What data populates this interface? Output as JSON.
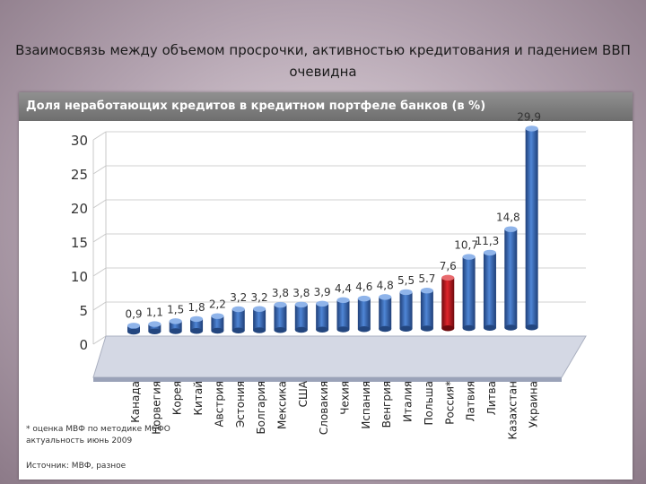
{
  "slide": {
    "title": "Взаимосвязь между объемом просрочки, активностью кредитования и падением ВВП очевидна"
  },
  "panel": {
    "header": "Доля неработающих кредитов  в кредитном портфеле  банков (в %)",
    "footnote_line1": "* оценка МВФ по методике МСФО",
    "footnote_line2": "актуальность июнь 2009",
    "source": "Источник: МВФ, разное"
  },
  "colors": {
    "bar": "#3d6fc0",
    "bar_highlight": "#c0141a"
  },
  "chart_data": {
    "type": "bar",
    "title": "Доля неработающих кредитов  в кредитном портфеле  банков (в %)",
    "categories": [
      "Канада",
      "Норвегия",
      "Корея",
      "Китай",
      "Австрия",
      "Эстония",
      "Болгария",
      "Мексика",
      "США",
      "Словакия",
      "Чехия",
      "Испания",
      "Венгрия",
      "Италия",
      "Польша",
      "Россия*",
      "Латвия",
      "Литва",
      "Казахстан",
      "Украина"
    ],
    "values": [
      0.9,
      1.1,
      1.5,
      1.8,
      2.2,
      3.2,
      3.2,
      3.8,
      3.8,
      3.9,
      4.4,
      4.6,
      4.8,
      5.5,
      5.7,
      7.6,
      10.7,
      11.3,
      14.8,
      29.9
    ],
    "value_labels": [
      "0,9",
      "1,1",
      "1,5",
      "1,8",
      "2,2",
      "3,2",
      "3,2",
      "3,8",
      "3,8",
      "3,9",
      "4,4",
      "4,6",
      "4,8",
      "5,5",
      "5.7",
      "7,6",
      "10,7",
      "11,3",
      "14,8",
      "29,9"
    ],
    "highlight_category": "Россия*",
    "yticks": [
      0,
      5,
      10,
      15,
      20,
      25,
      30
    ],
    "ylim": [
      0,
      30
    ],
    "grid": true,
    "legend": "none"
  }
}
